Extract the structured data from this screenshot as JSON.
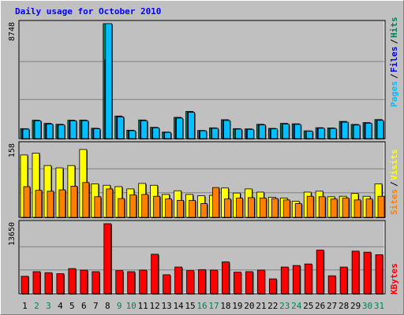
{
  "colors": {
    "background": "#c0c0c0",
    "hits": "#00805c",
    "files": "#0000ff",
    "pages": "#00c0ff",
    "visits": "#ffff00",
    "sites": "#ff8000",
    "kbytes": "#ff0000",
    "title": "#0000ff",
    "weekday_label": "#000000",
    "weekend_label": "#00805c"
  },
  "chart_data": [
    {
      "type": "bar",
      "title": "Daily usage for October 2010",
      "panel": "hits-files-pages",
      "ymax_label": "8748",
      "ylim": [
        0,
        8748
      ],
      "categories": [
        "1",
        "2",
        "3",
        "4",
        "5",
        "6",
        "7",
        "8",
        "9",
        "10",
        "11",
        "12",
        "13",
        "14",
        "15",
        "16",
        "17",
        "18",
        "19",
        "20",
        "21",
        "22",
        "23",
        "24",
        "25",
        "26",
        "27",
        "28",
        "29",
        "30",
        "31"
      ],
      "series": [
        {
          "name": "Hits",
          "values": [
            760,
            1400,
            1160,
            1090,
            1400,
            1410,
            790,
            8748,
            1720,
            640,
            1420,
            860,
            500,
            1620,
            2070,
            620,
            820,
            1440,
            760,
            740,
            1090,
            780,
            1160,
            1130,
            590,
            830,
            810,
            1310,
            1080,
            1220,
            1450
          ]
        },
        {
          "name": "Files",
          "values": [
            720,
            1350,
            1100,
            1040,
            1350,
            1360,
            750,
            6000,
            1650,
            600,
            1360,
            820,
            470,
            1560,
            2000,
            590,
            780,
            1380,
            720,
            700,
            1040,
            740,
            1100,
            1080,
            560,
            790,
            770,
            1250,
            1030,
            1170,
            1390
          ]
        },
        {
          "name": "Pages",
          "values": [
            720,
            1350,
            1100,
            1040,
            1350,
            1360,
            750,
            8748,
            1650,
            600,
            1360,
            820,
            470,
            1560,
            2000,
            590,
            780,
            1380,
            720,
            700,
            1040,
            740,
            1100,
            1080,
            560,
            790,
            770,
            1250,
            1030,
            1170,
            1390
          ]
        }
      ]
    },
    {
      "type": "bar",
      "panel": "visits-sites",
      "ymax_label": "158",
      "ylim": [
        0,
        158
      ],
      "categories": [
        "1",
        "2",
        "3",
        "4",
        "5",
        "6",
        "7",
        "8",
        "9",
        "10",
        "11",
        "12",
        "13",
        "14",
        "15",
        "16",
        "17",
        "18",
        "19",
        "20",
        "21",
        "22",
        "23",
        "24",
        "25",
        "26",
        "27",
        "28",
        "29",
        "30",
        "31"
      ],
      "series": [
        {
          "name": "Visits",
          "values": [
            136,
            140,
            113,
            108,
            113,
            148,
            73,
            70,
            67,
            62,
            74,
            70,
            50,
            58,
            50,
            47,
            48,
            64,
            53,
            62,
            55,
            44,
            42,
            35,
            55,
            57,
            45,
            46,
            52,
            46,
            73
          ]
        },
        {
          "name": "Sites",
          "values": [
            67,
            59,
            57,
            60,
            68,
            76,
            45,
            62,
            41,
            49,
            50,
            46,
            40,
            37,
            37,
            30,
            65,
            40,
            42,
            43,
            42,
            41,
            38,
            30,
            46,
            45,
            40,
            42,
            38,
            40,
            46
          ]
        }
      ]
    },
    {
      "type": "bar",
      "panel": "kbytes",
      "ymax_label": "13650",
      "ylim": [
        0,
        13650
      ],
      "categories": [
        "1",
        "2",
        "3",
        "4",
        "5",
        "6",
        "7",
        "8",
        "9",
        "10",
        "11",
        "12",
        "13",
        "14",
        "15",
        "16",
        "17",
        "18",
        "19",
        "20",
        "21",
        "22",
        "23",
        "24",
        "25",
        "26",
        "27",
        "28",
        "29",
        "30",
        "31"
      ],
      "series": [
        {
          "name": "KBytes",
          "values": [
            3400,
            4300,
            4100,
            3900,
            4900,
            4600,
            4300,
            13650,
            4500,
            4300,
            4600,
            7700,
            3700,
            5200,
            4500,
            4700,
            4600,
            6200,
            4200,
            4300,
            4600,
            2900,
            5200,
            5500,
            5800,
            8500,
            3500,
            5200,
            8300,
            8100,
            7600
          ]
        }
      ]
    }
  ],
  "right_labels": {
    "top": [
      "Pages",
      "/",
      "Files",
      "/",
      "Hits"
    ],
    "middle": [
      "Sites",
      "/",
      "Visits"
    ],
    "bottom": [
      "KBytes"
    ]
  }
}
